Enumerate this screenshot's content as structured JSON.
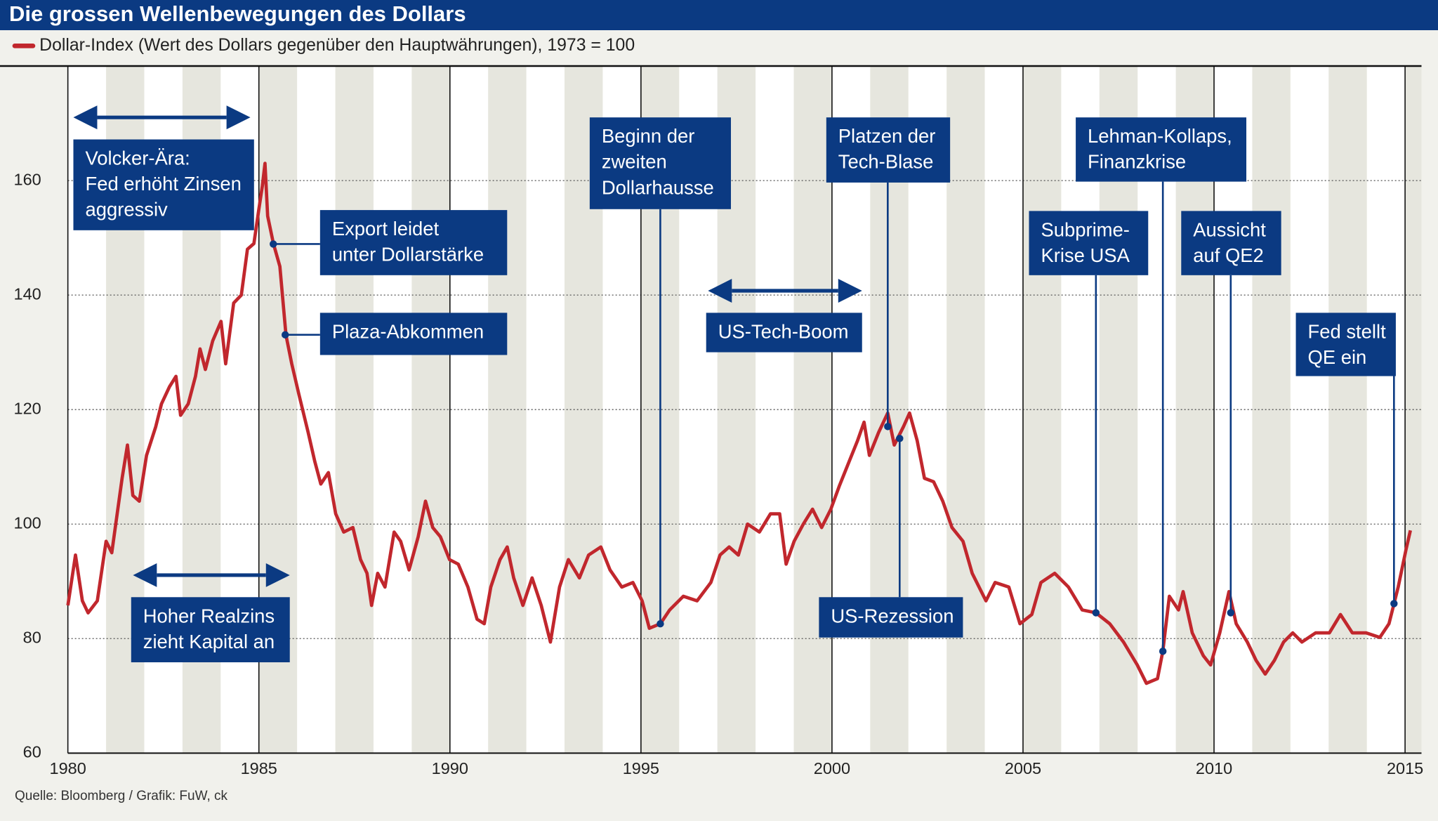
{
  "chart_data": {
    "type": "line",
    "title": "Die grossen Wellenbewegungen des Dollars",
    "source": "Quelle: Bloomberg / Grafik: FuW, ck",
    "x": [
      1980.0,
      1980.2,
      1980.38,
      1980.53,
      1980.77,
      1981.0,
      1981.15,
      1981.42,
      1981.56,
      1981.7,
      1981.87,
      1982.06,
      1982.3,
      1982.45,
      1982.66,
      1982.83,
      1982.95,
      1983.15,
      1983.34,
      1983.46,
      1983.6,
      1983.79,
      1984.01,
      1984.13,
      1984.34,
      1984.54,
      1984.7,
      1984.87,
      1984.99,
      1985.09,
      1985.16,
      1985.23,
      1985.38,
      1985.55,
      1985.71,
      1985.86,
      1986.05,
      1986.29,
      1986.46,
      1986.62,
      1986.82,
      1987.01,
      1987.22,
      1987.46,
      1987.66,
      1987.83,
      1987.95,
      1988.11,
      1988.3,
      1988.54,
      1988.71,
      1988.93,
      1989.17,
      1989.36,
      1989.55,
      1989.75,
      1989.99,
      1990.22,
      1990.47,
      1990.71,
      1990.9,
      1991.07,
      1991.31,
      1991.5,
      1991.67,
      1991.91,
      1992.15,
      1992.39,
      1992.63,
      1992.87,
      1993.1,
      1993.39,
      1993.63,
      1993.95,
      1994.19,
      1994.5,
      1994.79,
      1995.03,
      1995.22,
      1995.51,
      1995.75,
      1996.11,
      1996.47,
      1996.83,
      1997.07,
      1997.31,
      1997.55,
      1997.79,
      1998.1,
      1998.39,
      1998.63,
      1998.8,
      1999.01,
      1999.25,
      1999.49,
      1999.73,
      1999.97,
      2000.19,
      2000.43,
      2000.67,
      2000.84,
      2000.98,
      2001.22,
      2001.46,
      2001.63,
      2001.87,
      2002.03,
      2002.23,
      2002.42,
      2002.66,
      2002.9,
      2003.14,
      2003.43,
      2003.67,
      2004.03,
      2004.27,
      2004.63,
      2004.92,
      2005.23,
      2005.47,
      2005.83,
      2006.19,
      2006.55,
      2006.91,
      2007.27,
      2007.63,
      2007.99,
      2008.23,
      2008.52,
      2008.66,
      2008.83,
      2009.07,
      2009.19,
      2009.43,
      2009.72,
      2009.91,
      2010.15,
      2010.39,
      2010.58,
      2010.87,
      2011.1,
      2011.34,
      2011.58,
      2011.82,
      2012.06,
      2012.3,
      2012.66,
      2013.02,
      2013.31,
      2013.62,
      2013.98,
      2014.34,
      2014.58,
      2014.82,
      2015.02,
      2015.14
    ],
    "series": [
      {
        "name": "Dollar-Index (Wert des Dollars gegenüber den Hauptwährungen), 1973 = 100",
        "color": "#c1272d",
        "values": [
          85.8,
          94.6,
          86.6,
          84.5,
          86.6,
          97,
          95,
          108,
          113.8,
          105,
          104,
          112,
          117,
          121,
          124,
          125.8,
          119,
          121,
          125.8,
          130.6,
          127,
          132,
          135.4,
          128,
          138.6,
          140,
          148,
          149,
          154.6,
          159,
          163,
          153.8,
          149,
          145,
          133,
          128,
          122.6,
          116,
          111,
          107,
          109,
          101.8,
          98.6,
          99.4,
          93.8,
          91.4,
          85.8,
          91.4,
          89,
          98.6,
          97,
          92,
          97.8,
          104,
          99.4,
          97.8,
          93.8,
          93,
          89,
          83.4,
          82.6,
          89,
          93.8,
          96,
          90.6,
          85.8,
          90.6,
          85.8,
          79.4,
          89,
          93.8,
          90.6,
          94.6,
          96,
          92,
          89,
          89.8,
          86.6,
          81.8,
          82.6,
          85,
          87.4,
          86.6,
          89.8,
          94.6,
          96,
          94.6,
          100,
          98.6,
          101.8,
          101.8,
          93,
          97,
          100,
          102.6,
          99.4,
          102.6,
          106.6,
          110.6,
          114.6,
          117.8,
          112,
          116,
          119.4,
          113.8,
          117,
          119.4,
          114.6,
          108,
          107.4,
          104,
          99.4,
          97,
          91.4,
          86.6,
          89.8,
          89,
          82.6,
          84.2,
          89.8,
          91.4,
          89,
          85,
          84.5,
          82.6,
          79.4,
          75.4,
          72.2,
          73,
          77.8,
          87.4,
          85,
          88.2,
          81,
          77,
          75.4,
          81,
          88.2,
          82.6,
          79.4,
          76.2,
          73.8,
          76.2,
          79.4,
          81,
          79.4,
          81,
          81,
          84.2,
          81,
          81,
          80.2,
          82.6,
          89,
          95.4,
          98.9
        ]
      }
    ],
    "xlim": [
      1980,
      2015.43
    ],
    "ylim": [
      60,
      180
    ],
    "xticks": [
      1980,
      1985,
      1990,
      1995,
      2000,
      2005,
      2010,
      2015
    ],
    "yticks": [
      60,
      80,
      100,
      120,
      140,
      160
    ],
    "grid": true,
    "annotations": [
      [
        "Volcker-Ära:",
        "Fed erhöht Zinsen",
        "aggressiv"
      ],
      [
        "Hoher Realzins",
        "zieht Kapital an"
      ],
      [
        "Export leidet",
        "unter Dollarstärke"
      ],
      [
        "Plaza-Abkommen"
      ],
      [
        "Beginn der",
        "zweiten",
        "Dollarhausse"
      ],
      [
        "US-Tech-Boom"
      ],
      [
        "Platzen der",
        "Tech-Blase"
      ],
      [
        "US-Rezession"
      ],
      [
        "Subprime-",
        "Krise USA"
      ],
      [
        "Lehman-Kollaps,",
        "Finanzkrise"
      ],
      [
        "Aussicht",
        "auf QE2"
      ],
      [
        "Fed stellt",
        "QE ein"
      ]
    ]
  }
}
